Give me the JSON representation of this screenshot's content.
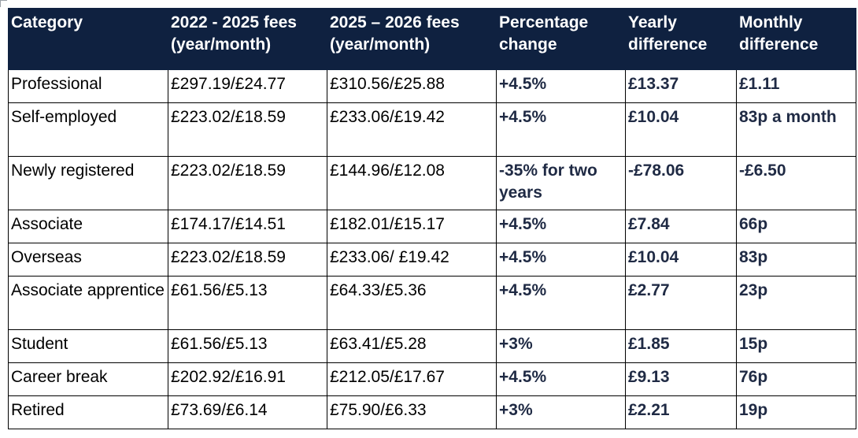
{
  "headers": [
    "Category",
    "2022 - 2025 fees (year/month)",
    "2025 – 2026 fees (year/month)",
    "Percentage change",
    "Yearly difference",
    "Monthly difference"
  ],
  "rows": [
    [
      "Professional",
      "£297.19/£24.77",
      "£310.56/£25.88",
      "+4.5%",
      "£13.37",
      "£1.11"
    ],
    [
      "Self-employed",
      "£223.02/£18.59",
      "£233.06/£19.42",
      "+4.5%",
      "£10.04",
      "83p a month"
    ],
    [
      "Newly registered",
      "£223.02/£18.59",
      "£144.96/£12.08",
      "-35% for two years",
      "-£78.06",
      "-£6.50"
    ],
    [
      "Associate",
      "£174.17/£14.51",
      "£182.01/£15.17",
      "+4.5%",
      "£7.84",
      "66p"
    ],
    [
      "Overseas",
      "£223.02/£18.59",
      "£233.06/ £19.42",
      "+4.5%",
      "£10.04",
      "83p"
    ],
    [
      "Associate apprentice",
      "£61.56/£5.13",
      "£64.33/£5.36",
      "+4.5%",
      "£2.77",
      "23p"
    ],
    [
      "Student",
      "£61.56/£5.13",
      "£63.41/£5.28",
      "+3%",
      "£1.85",
      "15p"
    ],
    [
      "Career break",
      "£202.92/£16.91",
      "£212.05/£17.67",
      "+4.5%",
      "£9.13",
      "76p"
    ],
    [
      "Retired",
      "£73.69/£6.14",
      "£75.90/£6.33",
      "+3%",
      "£2.21",
      "19p"
    ]
  ],
  "colors": {
    "header_bg": "#0f2140",
    "header_text": "#ffffff",
    "bold_text": "#1f2a44"
  }
}
